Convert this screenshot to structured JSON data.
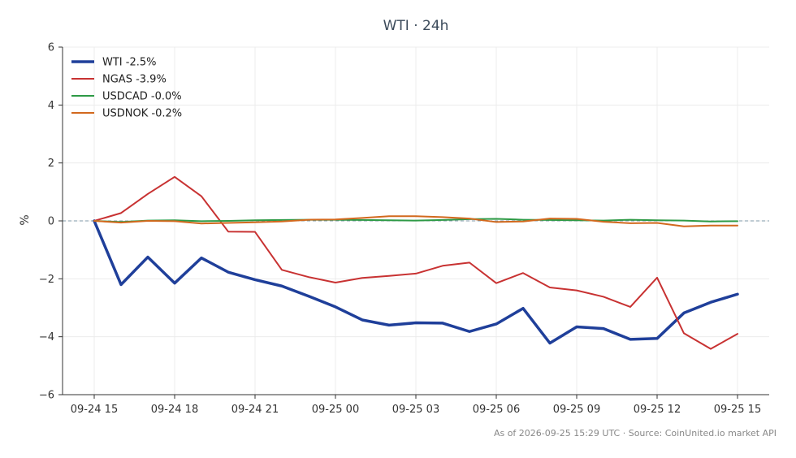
{
  "chart_data": {
    "type": "line",
    "title": "WTI · 24h",
    "xlabel": "",
    "ylabel": "%",
    "ylim": [
      -6,
      6
    ],
    "yticks": [
      6,
      4,
      2,
      0,
      -2,
      -4,
      -6
    ],
    "ytick_labels": [
      "6",
      "4",
      "2",
      "0",
      "−2",
      "−4",
      "−6"
    ],
    "x": [
      "09-24 15",
      "09-24 16",
      "09-24 17",
      "09-24 18",
      "09-24 19",
      "09-24 20",
      "09-24 21",
      "09-24 22",
      "09-24 23",
      "09-25 00",
      "09-25 01",
      "09-25 02",
      "09-25 03",
      "09-25 04",
      "09-25 05",
      "09-25 06",
      "09-25 07",
      "09-25 08",
      "09-25 09",
      "09-25 10",
      "09-25 11",
      "09-25 12",
      "09-25 13",
      "09-25 14",
      "09-25 15"
    ],
    "xtick_labels": [
      "09-24 15",
      "09-24 18",
      "09-24 21",
      "09-25 00",
      "09-25 03",
      "09-25 06",
      "09-25 09",
      "09-25 12",
      "09-25 15"
    ],
    "grid": true,
    "legend_position": "top-left",
    "zero_line": true,
    "series": [
      {
        "name": "WTI -2.5%",
        "color": "#1f3f9a",
        "width": 3.5,
        "values": [
          0,
          -2.2,
          -1.25,
          -2.15,
          -1.28,
          -1.77,
          -2.03,
          -2.25,
          -2.6,
          -2.97,
          -3.42,
          -3.6,
          -3.52,
          -3.53,
          -3.82,
          -3.56,
          -3.02,
          -4.22,
          -3.66,
          -3.72,
          -4.09,
          -4.06,
          -3.18,
          -2.81,
          -2.53
        ]
      },
      {
        "name": "NGAS -3.9%",
        "color": "#c83232",
        "width": 2,
        "values": [
          0,
          0.27,
          0.93,
          1.52,
          0.85,
          -0.37,
          -0.38,
          -1.69,
          -1.94,
          -2.13,
          -1.97,
          -1.9,
          -1.82,
          -1.55,
          -1.44,
          -2.15,
          -1.8,
          -2.3,
          -2.4,
          -2.62,
          -2.97,
          -1.96,
          -3.88,
          -4.42,
          -3.9
        ]
      },
      {
        "name": "USDCAD -0.0%",
        "color": "#2e9a46",
        "width": 2,
        "values": [
          0,
          -0.04,
          0.01,
          0.02,
          -0.01,
          0.0,
          0.02,
          0.03,
          0.04,
          0.04,
          0.03,
          0.02,
          0.01,
          0.03,
          0.06,
          0.07,
          0.04,
          0.03,
          0.02,
          0.01,
          0.04,
          0.02,
          0.01,
          -0.02,
          -0.01
        ]
      },
      {
        "name": "USDNOK -0.2%",
        "color": "#d2691e",
        "width": 2,
        "values": [
          0,
          -0.06,
          0.0,
          -0.01,
          -0.09,
          -0.07,
          -0.05,
          -0.02,
          0.04,
          0.05,
          0.1,
          0.16,
          0.16,
          0.13,
          0.08,
          -0.04,
          -0.02,
          0.08,
          0.07,
          -0.03,
          -0.08,
          -0.07,
          -0.19,
          -0.16,
          -0.16
        ]
      }
    ]
  },
  "footer": {
    "text": "As of 2026-09-25 15:29 UTC · Source: CoinUnited.io market API"
  }
}
